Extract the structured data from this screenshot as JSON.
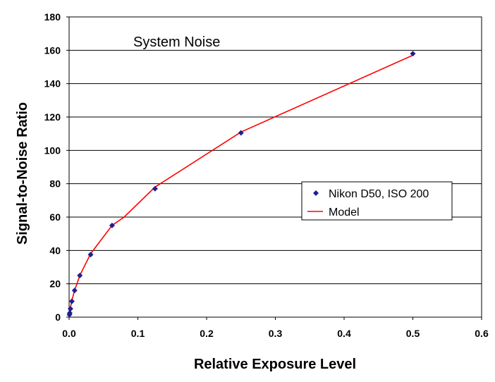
{
  "chart_data": {
    "type": "scatter",
    "title": "System Noise",
    "xlabel": "Relative Exposure Level",
    "ylabel": "Signal-to-Noise Ratio",
    "xlim": [
      0,
      0.6
    ],
    "ylim": [
      0,
      180
    ],
    "xticks": [
      0,
      0.1,
      0.2,
      0.3,
      0.4,
      0.5,
      0.6
    ],
    "xtick_labels": [
      "0.0",
      "0.1",
      "0.2",
      "0.3",
      "0.4",
      "0.5",
      "0.6"
    ],
    "yticks": [
      0,
      20,
      40,
      60,
      80,
      100,
      120,
      140,
      160,
      180
    ],
    "ytick_labels": [
      "0",
      "20",
      "40",
      "60",
      "80",
      "100",
      "120",
      "140",
      "160",
      "180"
    ],
    "grid": "horizontal",
    "legend_position": "right-middle",
    "series": [
      {
        "name": "Nikon D50, ISO 200",
        "kind": "markers",
        "color": "#1f1f8f",
        "marker": "diamond",
        "x": [
          0.0005,
          0.001,
          0.002,
          0.004,
          0.008,
          0.0156,
          0.0313,
          0.0625,
          0.125,
          0.25,
          0.5
        ],
        "y": [
          1.5,
          2.5,
          5,
          9.5,
          16,
          25,
          37.5,
          55,
          77,
          110.5,
          158
        ]
      },
      {
        "name": "Model",
        "kind": "line",
        "color": "#ff0000",
        "x": [
          0,
          0.0005,
          0.001,
          0.002,
          0.004,
          0.008,
          0.0156,
          0.0313,
          0.0625,
          0.08,
          0.125,
          0.25,
          0.5
        ],
        "y": [
          0,
          2,
          3.5,
          6,
          10,
          16,
          25,
          38,
          55,
          60,
          78,
          111,
          157
        ]
      }
    ]
  }
}
